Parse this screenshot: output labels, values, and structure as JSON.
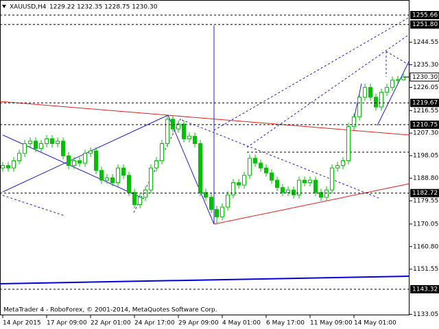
{
  "chart_data": {
    "type": "candlestick",
    "symbol": "XAUUSD,H4",
    "ohlc_text": "1229.22 1232.35 1228.75 1230.30",
    "footer": "MetaTrader 4 - RoboForex, © 2001-2014, MetaQuotes Software Corp.",
    "categories": [
      "14 Apr 2015",
      null,
      null,
      null,
      null,
      null,
      null,
      null,
      "17 Apr 09:00",
      null,
      null,
      null,
      null,
      null,
      null,
      null,
      "22 Apr 01:00",
      null,
      null,
      null,
      null,
      null,
      null,
      null,
      "24 Apr 17:00",
      null,
      null,
      null,
      null,
      null,
      null,
      null,
      "29 Apr 09:00",
      null,
      null,
      null,
      null,
      null,
      null,
      null,
      "4 May 01:00",
      null,
      null,
      null,
      null,
      null,
      null,
      null,
      "6 May 17:00",
      null,
      null,
      null,
      null,
      null,
      null,
      null,
      "11 May 09:00",
      null,
      null,
      null,
      null,
      null,
      null,
      null,
      "14 May 01:00",
      null,
      null,
      null,
      null,
      null,
      null,
      null,
      null,
      null
    ],
    "open": [
      1193,
      1194,
      1193,
      1196,
      1199,
      1203,
      1204,
      1201,
      1203,
      1205,
      1203,
      1204,
      1198,
      1194,
      1196,
      1195,
      1199,
      1200,
      1192,
      1188,
      1189,
      1187,
      1193,
      1190,
      1183,
      1178,
      1181,
      1184,
      1193,
      1196,
      1203,
      1213,
      1209,
      1211,
      1205,
      1206,
      1203,
      1183,
      1181,
      1176,
      1173,
      1177,
      1182,
      1187,
      1186,
      1190,
      1197,
      1195,
      1193,
      1191,
      1188,
      1185,
      1183,
      1184,
      1182,
      1188,
      1187,
      1188,
      1183,
      1181,
      1184,
      1193,
      1194,
      1196,
      1210,
      1214,
      1222,
      1226,
      1222,
      1218,
      1224,
      1226,
      1229,
      1229.22
    ],
    "high": [
      1195.5,
      1195.5,
      1197.5,
      1200.5,
      1204.5,
      1205.5,
      1205.5,
      1204.5,
      1206.5,
      1206.5,
      1205.5,
      1205.5,
      1199.5,
      1197.5,
      1197.5,
      1200.5,
      1201.5,
      1201.5,
      1193.5,
      1190.5,
      1190.5,
      1194.5,
      1194.5,
      1191.5,
      1184.5,
      1182.5,
      1185.5,
      1194.5,
      1197.5,
      1204.5,
      1214.5,
      1214.5,
      1212.5,
      1212.5,
      1207.5,
      1207.5,
      1204.5,
      1184.5,
      1182.5,
      1177.5,
      1178.5,
      1183.5,
      1188.5,
      1188.5,
      1191.5,
      1198.5,
      1198.5,
      1196.5,
      1194.5,
      1192.5,
      1189.5,
      1186.5,
      1185.5,
      1185.5,
      1189.5,
      1189.5,
      1189.5,
      1189.5,
      1184.5,
      1185.5,
      1194.5,
      1195.5,
      1197.5,
      1211.5,
      1215.5,
      1223.5,
      1227.5,
      1227.5,
      1223.5,
      1225.5,
      1227.5,
      1230.5,
      1230.72,
      1232.35
    ],
    "low": [
      1191.5,
      1191.5,
      1191.5,
      1194.5,
      1197.5,
      1201.5,
      1199.5,
      1199.5,
      1201.5,
      1201.5,
      1201.5,
      1196.5,
      1192.5,
      1192.5,
      1193.5,
      1193.5,
      1197.5,
      1190.5,
      1186.5,
      1186.5,
      1185.5,
      1185.5,
      1188.5,
      1181.5,
      1176.5,
      1176.5,
      1179.5,
      1182.5,
      1191.5,
      1194.5,
      1201.5,
      1207.5,
      1207.5,
      1203.5,
      1203.5,
      1201.5,
      1181.5,
      1179.5,
      1174.5,
      1170.5,
      1171.5,
      1175.5,
      1180.5,
      1184.5,
      1184.5,
      1188.5,
      1193.5,
      1191.5,
      1189.5,
      1186.5,
      1183.5,
      1181.5,
      1181.5,
      1180.5,
      1180.5,
      1185.5,
      1185.5,
      1181.5,
      1179.5,
      1179.5,
      1182.5,
      1191.5,
      1192.5,
      1194.5,
      1208.5,
      1212.5,
      1220.5,
      1220.5,
      1216.5,
      1216.5,
      1222.5,
      1224.5,
      1227.5,
      1228.75
    ],
    "close": [
      1194,
      1193,
      1196,
      1199,
      1203,
      1204,
      1201,
      1203,
      1205,
      1203,
      1204,
      1198,
      1194,
      1196,
      1195,
      1199,
      1200,
      1192,
      1188,
      1189,
      1187,
      1193,
      1190,
      1183,
      1178,
      1181,
      1184,
      1193,
      1196,
      1203,
      1213,
      1209,
      1211,
      1205,
      1206,
      1203,
      1183,
      1181,
      1176,
      1173,
      1177,
      1182,
      1187,
      1186,
      1190,
      1197,
      1195,
      1193,
      1191,
      1188,
      1185,
      1183,
      1184,
      1182,
      1188,
      1187,
      1188,
      1183,
      1181,
      1184,
      1193,
      1194,
      1196,
      1210,
      1214,
      1222,
      1226,
      1222,
      1218,
      1224,
      1226,
      1229,
      1229.22,
      1230.3
    ],
    "up_color": "#00c000",
    "down_color": "#00c000",
    "ylim": [
      1132.65,
      1261.84
    ],
    "yticks": [
      {
        "value": 1244.55,
        "label": "1244.55"
      },
      {
        "value": 1235.3,
        "label": "1235.30"
      },
      {
        "value": 1226.05,
        "label": "1226.05"
      },
      {
        "value": 1216.55,
        "label": "1216.55"
      },
      {
        "value": 1207.3,
        "label": "1207.30"
      },
      {
        "value": 1198.05,
        "label": "1198.05"
      },
      {
        "value": 1188.8,
        "label": "1188.80"
      },
      {
        "value": 1179.55,
        "label": "1179.55"
      },
      {
        "value": 1170.05,
        "label": "1170.05"
      },
      {
        "value": 1160.8,
        "label": "1160.80"
      },
      {
        "value": 1151.55,
        "label": "1151.55"
      },
      {
        "value": 1133.05,
        "label": "1133.05"
      }
    ],
    "levels": [
      {
        "value": 1255.66,
        "label": "1255.66"
      },
      {
        "value": 1251.8,
        "label": "1251.80"
      },
      {
        "value": 1219.67,
        "label": "1219.67"
      },
      {
        "value": 1210.75,
        "label": "1210.75"
      },
      {
        "value": 1182.72,
        "label": "1182.72"
      },
      {
        "value": 1143.32,
        "label": "1143.32"
      }
    ],
    "price_line": {
      "value": 1230.3,
      "label": "1230.30"
    }
  }
}
